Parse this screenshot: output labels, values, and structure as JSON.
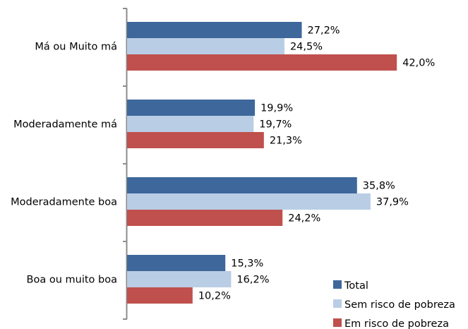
{
  "chart_data": {
    "type": "bar",
    "orientation": "horizontal",
    "categories": [
      "Má ou Muito má",
      "Moderadamente má",
      "Moderadamente boa",
      "Boa ou muito boa"
    ],
    "series": [
      {
        "name": "Total",
        "color": "#3e679b",
        "values": [
          27.2,
          19.9,
          35.8,
          15.3
        ],
        "labels": [
          "27,2%",
          "19,9%",
          "35,8%",
          "15,3%"
        ]
      },
      {
        "name": "Sem risco de pobreza",
        "color": "#b9cde5",
        "values": [
          24.5,
          19.7,
          37.9,
          16.2
        ],
        "labels": [
          "24,5%",
          "19,7%",
          "37,9%",
          "16,2%"
        ]
      },
      {
        "name": "Em risco de pobreza",
        "color": "#c0504d",
        "values": [
          42.0,
          21.3,
          24.2,
          10.2
        ],
        "labels": [
          "42,0%",
          "21,3%",
          "24,2%",
          "10,2%"
        ]
      }
    ],
    "xlim": [
      0,
      45
    ],
    "grid": false,
    "legend_position": "bottom-right",
    "title": "",
    "xlabel": "",
    "ylabel": ""
  }
}
